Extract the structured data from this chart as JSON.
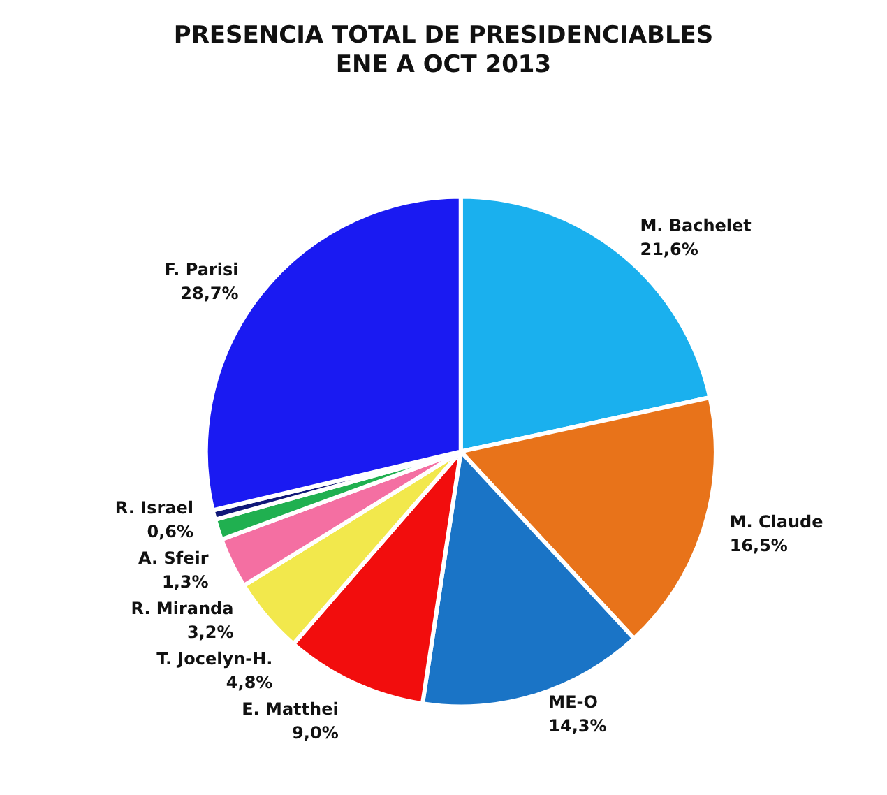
{
  "chart_data": {
    "type": "pie",
    "title": "PRESENCIA TOTAL DE PRESIDENCIABLES",
    "subtitle": "ENE A OCT 2013",
    "categories": [
      "M. Bachelet",
      "M. Claude",
      "ME-O",
      "E. Matthei",
      "T. Jocelyn-H.",
      "R. Miranda",
      "A. Sfeir",
      "R. Israel",
      "F. Parisi"
    ],
    "values": [
      21.6,
      16.5,
      14.3,
      9.0,
      4.8,
      3.2,
      1.3,
      0.6,
      28.7
    ],
    "value_labels": [
      "21,6%",
      "16,5%",
      "14,3%",
      "9,0%",
      "4,8%",
      "3,2%",
      "1,3%",
      "0,6%",
      "28,7%"
    ],
    "colors": [
      "#1ab0ee",
      "#e8731a",
      "#1a74c6",
      "#f20d0d",
      "#f2e84c",
      "#f46fa2",
      "#20b050",
      "#101878",
      "#1a1af2"
    ]
  }
}
